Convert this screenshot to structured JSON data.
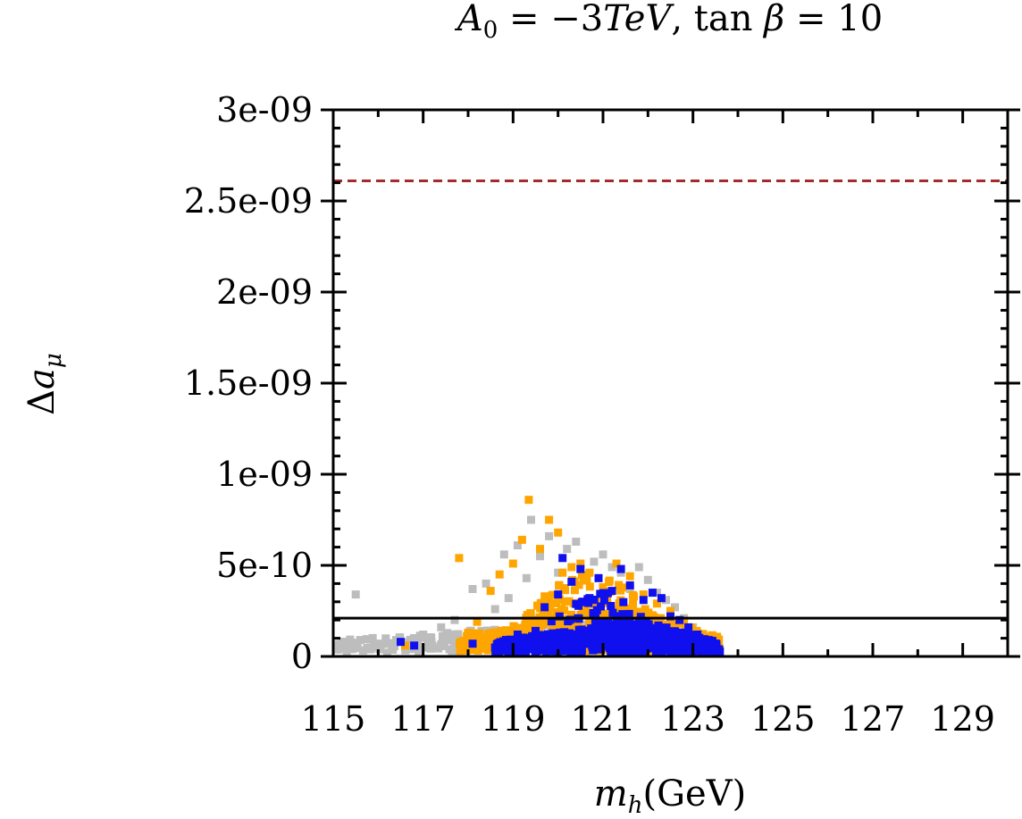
{
  "chart_data": {
    "type": "scatter",
    "title": "A_0 = -3TeV, tan β = 10",
    "title_parts": {
      "a": "A",
      "a_sub": "0",
      "eq1": " = −3",
      "tev": "TeV",
      "comma": ", tan ",
      "beta": "β",
      "eq2": " = 10"
    },
    "xlabel": "m_h(GeV)",
    "xlabel_parts": {
      "m": "m",
      "sub": "h",
      "rest": "(GeV)"
    },
    "ylabel": "Δa_μ",
    "ylabel_parts": {
      "delta": "Δ",
      "a": "a",
      "sub": "μ"
    },
    "xlim": [
      115,
      130
    ],
    "ylim": [
      0,
      3e-09
    ],
    "x_ticks": [
      115,
      117,
      119,
      121,
      123,
      125,
      127,
      129
    ],
    "x_tick_labels": [
      "115",
      "117",
      "119",
      "121",
      "123",
      "125",
      "127",
      "129"
    ],
    "y_ticks": [
      0,
      5e-10,
      1e-09,
      1.5e-09,
      2e-09,
      2.5e-09,
      3e-09
    ],
    "y_tick_labels": [
      "0",
      "5e-10",
      "1e-09",
      "1.5e-09",
      "2e-09",
      "2.5e-09",
      "3e-09"
    ],
    "grid": false,
    "reference_lines": [
      {
        "y": 2.61e-09,
        "style": "dashed",
        "color": "#a52a2a"
      },
      {
        "y": 2.1e-10,
        "style": "solid",
        "color": "#000000"
      }
    ],
    "series": [
      {
        "color": "#bdbdbd",
        "points": [
          [
            115.2,
            7e-11
          ],
          [
            115.3,
            3e-11
          ],
          [
            115.4,
            5e-11
          ],
          [
            115.6,
            9e-11
          ],
          [
            115.5,
            3.4e-10
          ],
          [
            115.8,
            4e-11
          ],
          [
            116.0,
            6e-11
          ],
          [
            116.2,
            2e-11
          ],
          [
            116.4,
            9e-11
          ],
          [
            116.6,
            5e-11
          ],
          [
            116.9,
            3e-11
          ],
          [
            117.0,
            1.2e-10
          ],
          [
            117.2,
            6e-11
          ],
          [
            117.4,
            1.6e-10
          ],
          [
            117.6,
            9e-11
          ],
          [
            117.7,
            2e-10
          ],
          [
            117.9,
            4e-11
          ],
          [
            118.1,
            3.7e-10
          ],
          [
            118.3,
            1.4e-10
          ],
          [
            118.4,
            4e-10
          ],
          [
            118.6,
            2.6e-10
          ],
          [
            118.8,
            5.6e-10
          ],
          [
            118.9,
            3.2e-10
          ],
          [
            119.1,
            6.1e-10
          ],
          [
            119.3,
            4.3e-10
          ],
          [
            119.4,
            7.5e-10
          ],
          [
            119.6,
            5.5e-10
          ],
          [
            119.8,
            6.6e-10
          ],
          [
            120.0,
            4.6e-10
          ],
          [
            120.2,
            5.9e-10
          ],
          [
            120.4,
            6.3e-10
          ],
          [
            120.6,
            4.4e-10
          ],
          [
            120.8,
            5.2e-10
          ],
          [
            121.0,
            5.6e-10
          ],
          [
            121.2,
            4.9e-10
          ],
          [
            121.4,
            4.6e-10
          ],
          [
            121.6,
            3.7e-10
          ],
          [
            121.8,
            4.9e-10
          ],
          [
            122.0,
            4.2e-10
          ],
          [
            122.2,
            3.5e-10
          ],
          [
            122.4,
            3.1e-10
          ],
          [
            122.6,
            2.7e-10
          ],
          [
            122.8,
            2.1e-10
          ],
          [
            123.0,
            1.6e-10
          ],
          [
            123.2,
            1.2e-10
          ],
          [
            123.4,
            7e-11
          ]
        ]
      },
      {
        "color": "#ffa500",
        "points": [
          [
            116.6,
            6e-11
          ],
          [
            117.8,
            5.4e-10
          ],
          [
            118.0,
            1.3e-10
          ],
          [
            118.2,
            1.9e-10
          ],
          [
            118.5,
            3.6e-10
          ],
          [
            118.7,
            4.5e-10
          ],
          [
            119.0,
            5.1e-10
          ],
          [
            119.2,
            6.4e-10
          ],
          [
            119.35,
            8.6e-10
          ],
          [
            119.6,
            5.9e-10
          ],
          [
            119.8,
            7.5e-10
          ],
          [
            120.0,
            6.8e-10
          ],
          [
            120.1,
            4.6e-10
          ],
          [
            120.3,
            4.9e-10
          ],
          [
            120.5,
            5.1e-10
          ],
          [
            120.7,
            4.6e-10
          ],
          [
            121.0,
            3.8e-10
          ],
          [
            121.3,
            5.1e-10
          ],
          [
            121.6,
            4.4e-10
          ],
          [
            121.9,
            3.4e-10
          ],
          [
            122.2,
            2.9e-10
          ],
          [
            122.5,
            2.5e-10
          ],
          [
            122.8,
            1.8e-10
          ],
          [
            123.2,
            1.2e-10
          ],
          [
            123.5,
            6e-11
          ],
          [
            118.4,
            6e-11
          ],
          [
            118.9,
            9e-11
          ],
          [
            119.5,
            1.1e-10
          ],
          [
            120.2,
            1.6e-10
          ],
          [
            121.1,
            1.9e-10
          ],
          [
            122.0,
            1.4e-10
          ]
        ]
      },
      {
        "color": "#1010ee",
        "points": [
          [
            116.5,
            8e-11
          ],
          [
            116.8,
            6e-11
          ],
          [
            118.1,
            7e-11
          ],
          [
            119.1,
            1.2e-10
          ],
          [
            119.5,
            1.4e-10
          ],
          [
            119.7,
            2.7e-10
          ],
          [
            120.0,
            3.4e-10
          ],
          [
            120.1,
            5.4e-10
          ],
          [
            120.3,
            4.1e-10
          ],
          [
            120.5,
            4.8e-10
          ],
          [
            120.7,
            3.2e-10
          ],
          [
            120.9,
            4.3e-10
          ],
          [
            121.2,
            3.6e-10
          ],
          [
            121.4,
            4.8e-10
          ],
          [
            121.6,
            3.9e-10
          ],
          [
            121.9,
            3.1e-10
          ],
          [
            122.1,
            3.5e-10
          ],
          [
            122.3,
            3.2e-10
          ],
          [
            122.5,
            2.2e-10
          ],
          [
            122.7,
            2e-10
          ],
          [
            122.9,
            1.6e-10
          ],
          [
            123.1,
            1.2e-10
          ],
          [
            123.4,
            5e-11
          ]
        ]
      }
    ],
    "clusters": [
      {
        "color": "#bdbdbd",
        "x": [
          115.0,
          123.6
        ],
        "y": [
          3e-11,
          1.9e-10
        ],
        "count": 220,
        "shape": "wedge"
      },
      {
        "color": "#ffa500",
        "x": [
          117.8,
          123.6
        ],
        "y": [
          3e-11,
          2.8e-10
        ],
        "count": 520,
        "shape": "wedge"
      },
      {
        "color": "#ffa500",
        "x": [
          119.2,
          122.2
        ],
        "y": [
          2e-10,
          4.6e-10
        ],
        "count": 110,
        "shape": "dome"
      },
      {
        "color": "#1010ee",
        "x": [
          118.6,
          123.6
        ],
        "y": [
          2e-11,
          2e-10
        ],
        "count": 620,
        "shape": "wedge"
      },
      {
        "color": "#1010ee",
        "x": [
          119.8,
          122.0
        ],
        "y": [
          1.8e-10,
          3.6e-10
        ],
        "count": 40,
        "shape": "dome"
      }
    ]
  }
}
